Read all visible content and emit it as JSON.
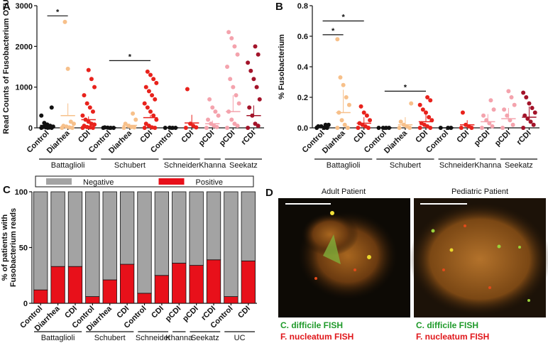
{
  "chart_data": [
    {
      "type": "dot",
      "panel_label": "A",
      "ylabel": "Read Counts of Fusobacterium OTU",
      "categories": [
        "Control",
        "Diarhea",
        "CDI",
        "Control",
        "Diarhea",
        "CDI",
        "Control",
        "CDI",
        "pCDI",
        "pCDI",
        "rCDI"
      ],
      "colors": [
        "#111111",
        "#f7c08a",
        "#e8221c",
        "#111111",
        "#f7c08a",
        "#e8221c",
        "#111111",
        "#e8221c",
        "#f4a3ad",
        "#f4a3ad",
        "#a3142a"
      ],
      "values": [
        [
          0,
          0,
          5,
          10,
          20,
          30,
          50,
          80,
          120,
          300,
          500
        ],
        [
          0,
          0,
          10,
          30,
          50,
          100,
          150,
          1450,
          2600
        ],
        [
          0,
          0,
          10,
          20,
          50,
          80,
          100,
          150,
          200,
          300,
          400,
          500,
          600,
          800,
          1000,
          1200,
          1420
        ],
        [
          0,
          0,
          0,
          5,
          10
        ],
        [
          0,
          10,
          20,
          50,
          100,
          200,
          350
        ],
        [
          0,
          0,
          10,
          50,
          100,
          200,
          300,
          400,
          500,
          600,
          700,
          800,
          900,
          1000,
          1100,
          1200,
          1300,
          1380
        ],
        [
          0,
          0,
          0,
          5
        ],
        [
          0,
          10,
          50,
          100,
          950
        ],
        [
          0,
          20,
          50,
          100,
          200,
          300,
          400,
          500,
          700
        ],
        [
          0,
          50,
          100,
          200,
          400,
          600,
          800,
          1000,
          1200,
          1500,
          1800,
          2000,
          2200,
          2350
        ],
        [
          0,
          50,
          100,
          300,
          500,
          700,
          1000,
          1200,
          1400,
          1600,
          1800,
          2000
        ]
      ],
      "means": [
        60,
        300,
        200,
        5,
        60,
        250,
        2,
        120,
        100,
        400,
        300
      ],
      "errors": [
        50,
        300,
        80,
        5,
        40,
        70,
        2,
        200,
        80,
        400,
        250
      ],
      "ylim": [
        0,
        3000
      ],
      "yticks": [
        0,
        1000,
        2000,
        3000
      ],
      "groups": [
        {
          "name": "Battaglioli",
          "span": [
            0,
            2
          ]
        },
        {
          "name": "Schubert",
          "span": [
            3,
            5
          ]
        },
        {
          "name": "Schneider",
          "span": [
            6,
            7
          ]
        },
        {
          "name": "Khanna",
          "span": [
            8,
            8
          ]
        },
        {
          "name": "Seekatz",
          "span": [
            9,
            10
          ]
        }
      ],
      "significance": [
        {
          "label": "*",
          "span": [
            0,
            1
          ],
          "level": 2750
        },
        {
          "label": "*",
          "span": [
            3,
            5
          ],
          "level": 1650
        }
      ]
    },
    {
      "type": "dot",
      "panel_label": "B",
      "ylabel": "% Fusobacterium",
      "categories": [
        "Control",
        "Diarhea",
        "CDI",
        "Control",
        "Diarhea",
        "CDI",
        "Control",
        "CDI",
        "pCDI",
        "pCDI",
        "rCDI"
      ],
      "colors": [
        "#111111",
        "#f7c08a",
        "#e8221c",
        "#111111",
        "#f7c08a",
        "#e8221c",
        "#111111",
        "#e8221c",
        "#f4a3ad",
        "#f4a3ad",
        "#a3142a"
      ],
      "values": [
        [
          0,
          0,
          0,
          0.01,
          0.01,
          0.02,
          0.02
        ],
        [
          0,
          0,
          0.02,
          0.05,
          0.1,
          0.15,
          0.2,
          0.28,
          0.33,
          0.58
        ],
        [
          0,
          0,
          0.01,
          0.02,
          0.03,
          0.05,
          0.08,
          0.1,
          0.14
        ],
        [
          0,
          0,
          0,
          0
        ],
        [
          0,
          0,
          0.01,
          0.02,
          0.04,
          0.16
        ],
        [
          0,
          0,
          0.01,
          0.02,
          0.03,
          0.05,
          0.07,
          0.1,
          0.12,
          0.15,
          0.18,
          0.2
        ],
        [
          0,
          0,
          0
        ],
        [
          0,
          0,
          0.01,
          0.02,
          0.1
        ],
        [
          0,
          0.01,
          0.03,
          0.05,
          0.08,
          0.12,
          0.18
        ],
        [
          0,
          0.02,
          0.05,
          0.08,
          0.12,
          0.15,
          0.2,
          0.24
        ],
        [
          0,
          0.02,
          0.04,
          0.06,
          0.08,
          0.1,
          0.13,
          0.16,
          0.2,
          0.23
        ]
      ],
      "means": [
        0.01,
        0.1,
        0.03,
        0,
        0.02,
        0.04,
        0,
        0.02,
        0.04,
        0.06,
        0.07
      ],
      "errors": [
        0.01,
        0.15,
        0.04,
        0,
        0.05,
        0.05,
        0,
        0.03,
        0.05,
        0.07,
        0.07
      ],
      "ylim": [
        0,
        0.8
      ],
      "yticks": [
        {
          "value": 0,
          "label": "0.0"
        },
        0.2,
        0.4,
        0.6,
        0.8
      ],
      "groups": [
        {
          "name": "Battaglioli",
          "span": [
            0,
            2
          ]
        },
        {
          "name": "Schubert",
          "span": [
            3,
            5
          ]
        },
        {
          "name": "Schneider",
          "span": [
            6,
            7
          ]
        },
        {
          "name": "Khanna",
          "span": [
            8,
            8
          ]
        },
        {
          "name": "Seekatz",
          "span": [
            9,
            10
          ]
        }
      ],
      "significance": [
        {
          "label": "*",
          "span": [
            0,
            2
          ],
          "level": 0.7
        },
        {
          "label": "*",
          "span": [
            0,
            1
          ],
          "level": 0.61
        },
        {
          "label": "*",
          "span": [
            3,
            5
          ],
          "level": 0.24
        }
      ]
    },
    {
      "type": "stacked_bar",
      "panel_label": "C",
      "ylabel": [
        "% of patients with",
        "Fusobacterium reads"
      ],
      "categories": [
        "Control",
        "Diarrhea",
        "CDI",
        "Control",
        "Diarrhea",
        "CDI",
        "Control",
        "CDI",
        "pCDI",
        "pCDI",
        "rCDI",
        "Control",
        "CDI"
      ],
      "series": [
        {
          "name": "Positive",
          "color": "#e8101a",
          "values": [
            12,
            33,
            33,
            6,
            21,
            35,
            9,
            25,
            36,
            34,
            39,
            6,
            38
          ]
        },
        {
          "name": "Negative",
          "color": "#a3a3a3",
          "values": [
            88,
            67,
            67,
            94,
            79,
            65,
            91,
            75,
            64,
            66,
            61,
            94,
            62
          ]
        }
      ],
      "legend": "top",
      "ylim": [
        0,
        100
      ],
      "yticks": [
        0,
        50,
        100
      ],
      "groups": [
        {
          "name": "Battaglioli",
          "span": [
            0,
            2
          ]
        },
        {
          "name": "Schubert",
          "span": [
            3,
            5
          ]
        },
        {
          "name": "Schneider",
          "span": [
            6,
            7
          ]
        },
        {
          "name": "Khanna",
          "span": [
            8,
            8
          ]
        },
        {
          "name": "Seekatz",
          "span": [
            9,
            10
          ]
        },
        {
          "name": "UC",
          "span": [
            11,
            12
          ]
        }
      ]
    }
  ],
  "panel_d": {
    "panel_label": "D",
    "images": [
      {
        "title": "Adult Patient",
        "caption_green": "C. difficile FISH",
        "caption_red": "F. nucleatum FISH"
      },
      {
        "title": "Pediatric Patient",
        "caption_green": "C. difficile FISH",
        "caption_red": "F. nucleatum FISH"
      }
    ]
  }
}
